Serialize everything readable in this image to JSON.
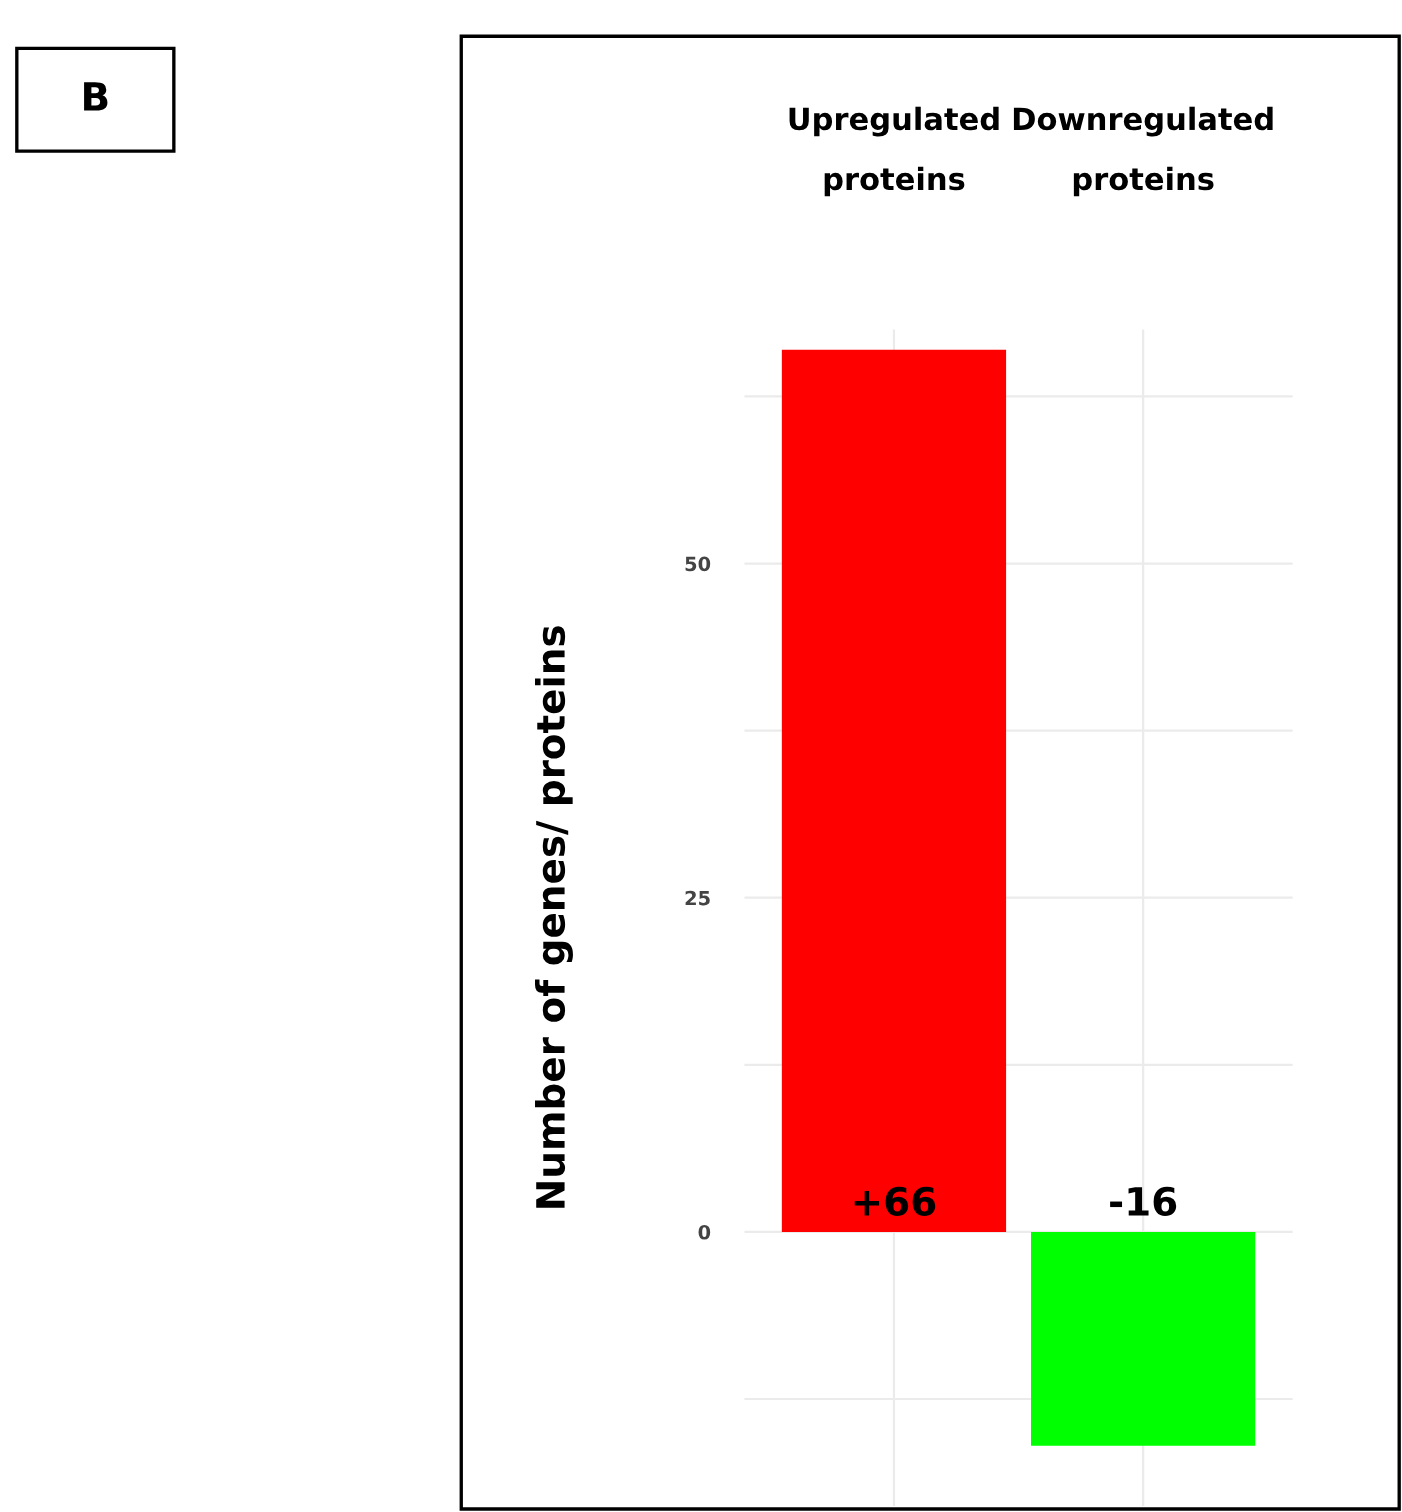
{
  "chart_data": {
    "type": "bar",
    "categories": [
      "Upregulated proteins",
      "Downregulated proteins"
    ],
    "values": [
      66,
      -16
    ],
    "colors": [
      "#ff0000",
      "#00ff00"
    ],
    "value_labels": [
      "+66",
      "-16"
    ],
    "ylabel": "Number of genes/ proteins",
    "ylim": [
      -20.5,
      67.5
    ],
    "yticks": [
      0,
      25,
      50
    ],
    "grid": true,
    "annotations": [
      "B"
    ]
  }
}
